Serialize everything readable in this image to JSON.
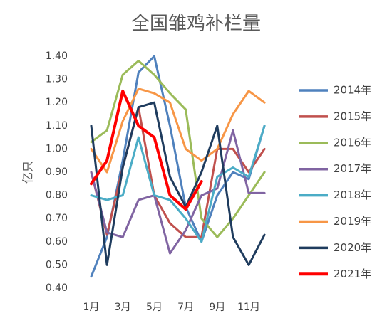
{
  "chart_data": {
    "type": "line",
    "title": "全国雏鸡补栏量",
    "y_label": "亿只",
    "categories": [
      "1月",
      null,
      "3月",
      null,
      "5月",
      null,
      "7月",
      null,
      "9月",
      null,
      "11月",
      null
    ],
    "ylim": [
      0.4,
      1.4
    ],
    "yticks": [
      {
        "value": 0.4,
        "label": "0.40"
      },
      {
        "value": 0.5,
        "label": "0.50"
      },
      {
        "value": 0.6,
        "label": "0.60"
      },
      {
        "value": 0.7,
        "label": "0.70"
      },
      {
        "value": 0.8,
        "label": "0.80"
      },
      {
        "value": 0.9,
        "label": "0.90"
      },
      {
        "value": 1.0,
        "label": "1.00"
      },
      {
        "value": 1.1,
        "label": "1.10"
      },
      {
        "value": 1.2,
        "label": "1.20"
      },
      {
        "value": 1.3,
        "label": "1.30"
      },
      {
        "value": 1.4,
        "label": "1.40"
      }
    ],
    "grid": false,
    "legend": "right",
    "series": [
      {
        "name": "2014年",
        "color": "#4f81bd",
        "values": [
          0.45,
          0.62,
          0.95,
          1.33,
          1.4,
          1.1,
          0.75,
          0.6,
          0.8,
          0.9,
          0.87,
          1.1
        ]
      },
      {
        "name": "2015年",
        "color": "#c0504d",
        "values": [
          0.9,
          0.63,
          0.92,
          1.18,
          0.8,
          0.68,
          0.62,
          0.62,
          1.0,
          1.0,
          0.9,
          1.0
        ]
      },
      {
        "name": "2016年",
        "color": "#9bbb59",
        "values": [
          1.03,
          1.08,
          1.32,
          1.38,
          1.32,
          1.24,
          1.17,
          0.7,
          0.62,
          0.7,
          0.8,
          0.9
        ]
      },
      {
        "name": "2017年",
        "color": "#8064a2",
        "values": [
          0.9,
          0.64,
          0.62,
          0.78,
          0.8,
          0.55,
          0.65,
          0.8,
          0.83,
          1.08,
          0.81,
          0.81
        ]
      },
      {
        "name": "2018年",
        "color": "#4bacc6",
        "values": [
          0.8,
          0.78,
          0.8,
          1.05,
          0.8,
          0.78,
          0.7,
          0.6,
          0.88,
          0.92,
          0.88,
          1.1
        ]
      },
      {
        "name": "2019年",
        "color": "#f79646",
        "values": [
          1.0,
          0.9,
          1.12,
          1.26,
          1.24,
          1.2,
          1.0,
          0.95,
          1.0,
          1.15,
          1.25,
          1.2
        ]
      },
      {
        "name": "2020年",
        "color": "#1f3c5e",
        "values": [
          1.1,
          0.5,
          0.92,
          1.18,
          1.2,
          0.88,
          0.75,
          0.9,
          1.1,
          0.62,
          0.5,
          0.63
        ]
      },
      {
        "name": "2021年",
        "color": "#ff0000",
        "values": [
          0.85,
          0.95,
          1.25,
          1.1,
          1.05,
          0.8,
          0.74,
          0.86,
          null,
          null,
          null,
          null
        ]
      }
    ]
  }
}
